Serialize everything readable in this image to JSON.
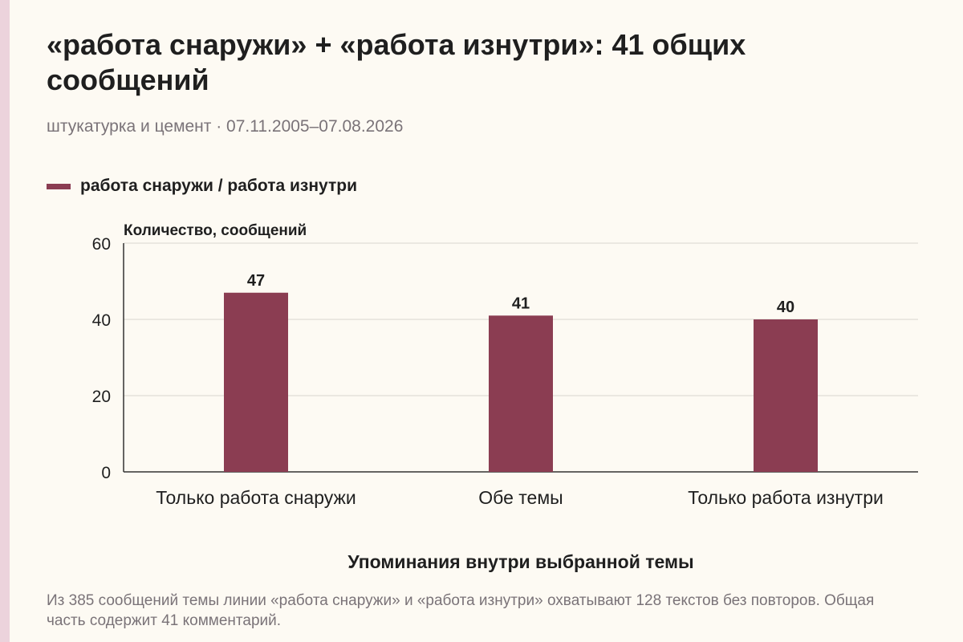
{
  "title": "«работа снаружи» + «работа изнутри»: 41 общих сообщений",
  "subtitle": "штукатурка и цемент · 07.11.2005–07.08.2026",
  "caption": "Из 385 сообщений темы линии «работа снаружи» и «работа изнутри» охватывают 128 текстов без повторов. Общая часть содержит 41 комментарий.",
  "colors": {
    "bar": "#8b3d52",
    "accent": "#ecd3dc",
    "text": "#1f1f1f",
    "muted": "#7a7378",
    "grid": "#d9d6cf",
    "axis": "#333333"
  },
  "chart_data": {
    "type": "bar",
    "categories": [
      "Только работа снаружи",
      "Обе темы",
      "Только работа изнутри"
    ],
    "series": [
      {
        "name": "работа снаружи / работа изнутри",
        "values": [
          47,
          41,
          40
        ]
      }
    ],
    "xlabel": "Упоминания внутри выбранной темы",
    "ylabel": "Количество, сообщений",
    "ylim": [
      0,
      60
    ],
    "yticks": [
      0,
      20,
      40,
      60
    ],
    "grid": true,
    "legend_position": "top-left",
    "data_labels": true
  }
}
